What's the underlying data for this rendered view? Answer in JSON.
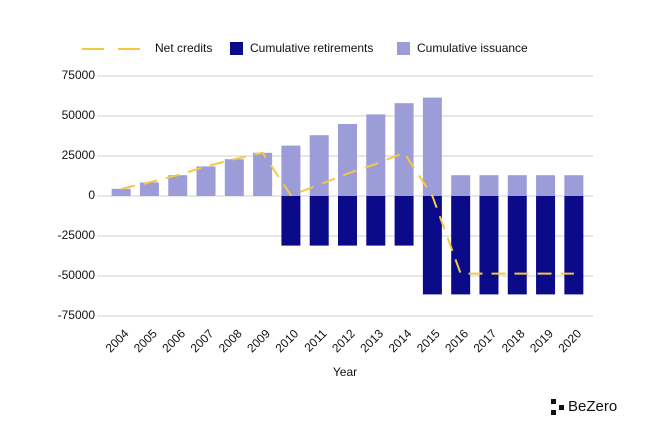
{
  "chart_data": {
    "type": "bar",
    "x_label": "Year",
    "categories": [
      "2004",
      "2005",
      "2006",
      "2007",
      "2008",
      "2009",
      "2010",
      "2011",
      "2012",
      "2013",
      "2014",
      "2015",
      "2016",
      "2017",
      "2018",
      "2019",
      "2020"
    ],
    "series": [
      {
        "name": "Net credits",
        "type": "line",
        "dashed": true,
        "color": "#f5c842",
        "values": [
          4500,
          8500,
          13000,
          18500,
          23000,
          27000,
          500,
          7000,
          14000,
          20000,
          27000,
          0,
          -48500,
          -48500,
          -48500,
          -48500,
          -48500
        ]
      },
      {
        "name": "Cumulative retirements",
        "type": "bar",
        "color": "#0b0b8a",
        "values": [
          0,
          0,
          0,
          0,
          0,
          0,
          -31000,
          -31000,
          -31000,
          -31000,
          -31000,
          -61500,
          -61500,
          -61500,
          -61500,
          -61500,
          -61500
        ]
      },
      {
        "name": "Cumulative issuance",
        "type": "bar",
        "color": "#9c9cd8",
        "values": [
          4500,
          8500,
          13000,
          18500,
          23000,
          27000,
          31500,
          38000,
          45000,
          51000,
          58000,
          61500,
          13000,
          13000,
          13000,
          13000,
          13000
        ]
      }
    ],
    "ylim": [
      -75000,
      75000
    ],
    "yticks": [
      -75000,
      -50000,
      -25000,
      0,
      25000,
      50000,
      75000
    ],
    "grid": true
  },
  "brand": "BeZero"
}
